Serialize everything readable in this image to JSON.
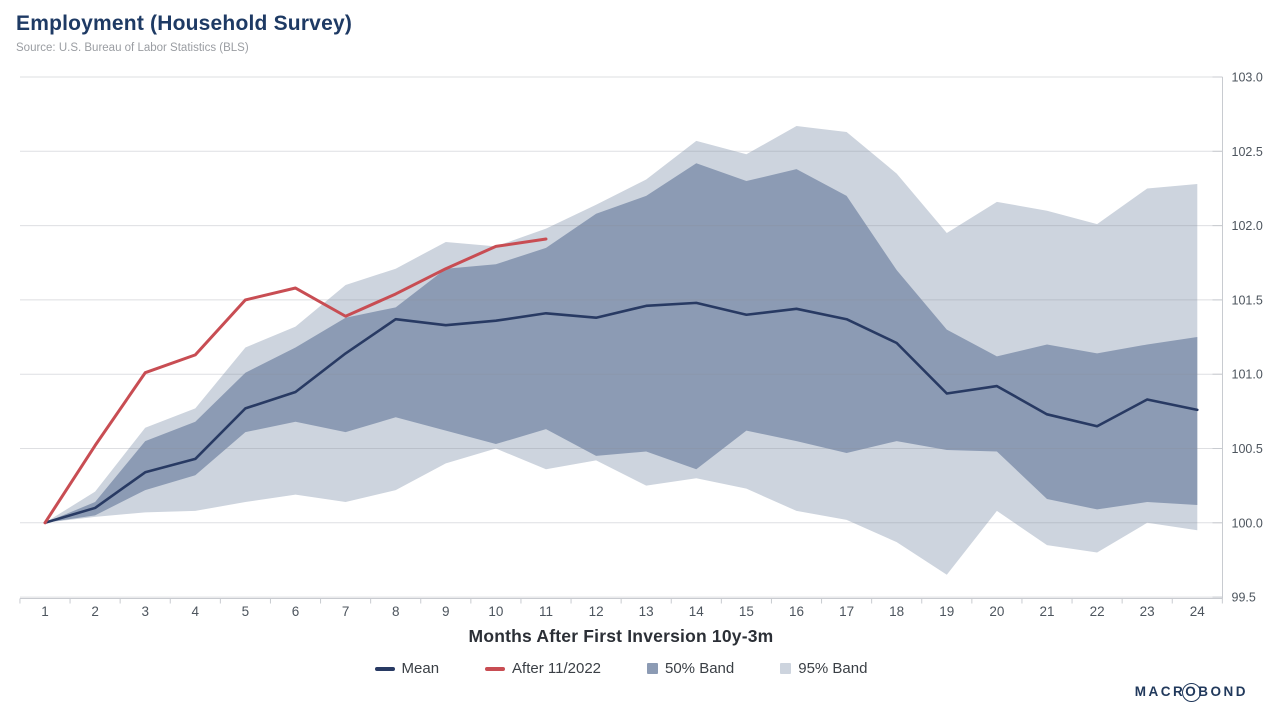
{
  "header": {
    "title": "Employment (Household Survey)",
    "subtitle": "Source: U.S. Bureau of Labor Statistics (BLS)"
  },
  "colors": {
    "title": "#1e3a64",
    "mean_line": "#283a63",
    "after_line": "#c84d53",
    "band_50": "#8c9bb4",
    "band_95": "#cdd4de",
    "gridline": "#d9dbde",
    "axis_line": "#c8cbd0",
    "tick_text": "#4d555e",
    "xaxis_title_color": "#2b2f36"
  },
  "legend": [
    {
      "label": "Mean",
      "swatch": "line",
      "color": "#283a63"
    },
    {
      "label": "After 11/2022",
      "swatch": "line",
      "color": "#c84d53"
    },
    {
      "label": "50% Band",
      "swatch": "box",
      "color": "#8c9bb4"
    },
    {
      "label": "95% Band",
      "swatch": "box",
      "color": "#cdd4de"
    }
  ],
  "logo": {
    "pre": "MACR",
    "ringed": "O",
    "post": "BOND"
  },
  "chart_data": {
    "type": "line",
    "title": "Employment (Household Survey)",
    "xlabel": "Months After First Inversion 10y-3m",
    "ylabel": "",
    "x": [
      1,
      2,
      3,
      4,
      5,
      6,
      7,
      8,
      9,
      10,
      11,
      12,
      13,
      14,
      15,
      16,
      17,
      18,
      19,
      20,
      21,
      22,
      23,
      24
    ],
    "xlim": [
      1,
      24
    ],
    "ylim": [
      99.5,
      103.0
    ],
    "ytick_step": 0.5,
    "yticks": [
      99.5,
      100.0,
      100.5,
      101.0,
      101.5,
      102.0,
      102.5,
      103.0
    ],
    "grid": true,
    "legend_position": "bottom",
    "series": [
      {
        "name": "95% Band",
        "kind": "band",
        "color": "#cdd4de",
        "upper": [
          100.0,
          100.21,
          100.64,
          100.77,
          101.18,
          101.32,
          101.6,
          101.71,
          101.89,
          101.86,
          101.98,
          102.14,
          102.31,
          102.57,
          102.48,
          102.67,
          102.63,
          102.35,
          101.95,
          102.16,
          102.1,
          102.01,
          102.25,
          102.28
        ],
        "lower": [
          100.0,
          100.04,
          100.07,
          100.08,
          100.14,
          100.19,
          100.14,
          100.22,
          100.4,
          100.5,
          100.36,
          100.42,
          100.25,
          100.3,
          100.23,
          100.08,
          100.02,
          99.87,
          99.65,
          100.08,
          99.85,
          99.8,
          100.0,
          99.95
        ]
      },
      {
        "name": "50% Band",
        "kind": "band",
        "color": "#8c9bb4",
        "upper": [
          100.0,
          100.14,
          100.55,
          100.68,
          101.01,
          101.18,
          101.38,
          101.45,
          101.71,
          101.74,
          101.85,
          102.08,
          102.2,
          102.42,
          102.3,
          102.38,
          102.2,
          101.7,
          101.3,
          101.12,
          101.2,
          101.14,
          101.2,
          101.25
        ],
        "lower": [
          100.0,
          100.05,
          100.22,
          100.32,
          100.61,
          100.68,
          100.61,
          100.71,
          100.62,
          100.53,
          100.63,
          100.45,
          100.48,
          100.36,
          100.62,
          100.55,
          100.47,
          100.55,
          100.49,
          100.48,
          100.16,
          100.09,
          100.14,
          100.12
        ]
      },
      {
        "name": "Mean",
        "kind": "line",
        "color": "#283a63",
        "width": 2.6,
        "values": [
          100.0,
          100.1,
          100.34,
          100.43,
          100.77,
          100.88,
          101.14,
          101.37,
          101.33,
          101.36,
          101.41,
          101.38,
          101.46,
          101.48,
          101.4,
          101.44,
          101.37,
          101.21,
          100.87,
          100.92,
          100.73,
          100.65,
          100.83,
          100.76
        ]
      },
      {
        "name": "After 11/2022",
        "kind": "line",
        "color": "#c84d53",
        "width": 3,
        "values": [
          100.0,
          100.52,
          101.01,
          101.13,
          101.5,
          101.58,
          101.39,
          101.54,
          101.71,
          101.86,
          101.91
        ]
      }
    ]
  }
}
